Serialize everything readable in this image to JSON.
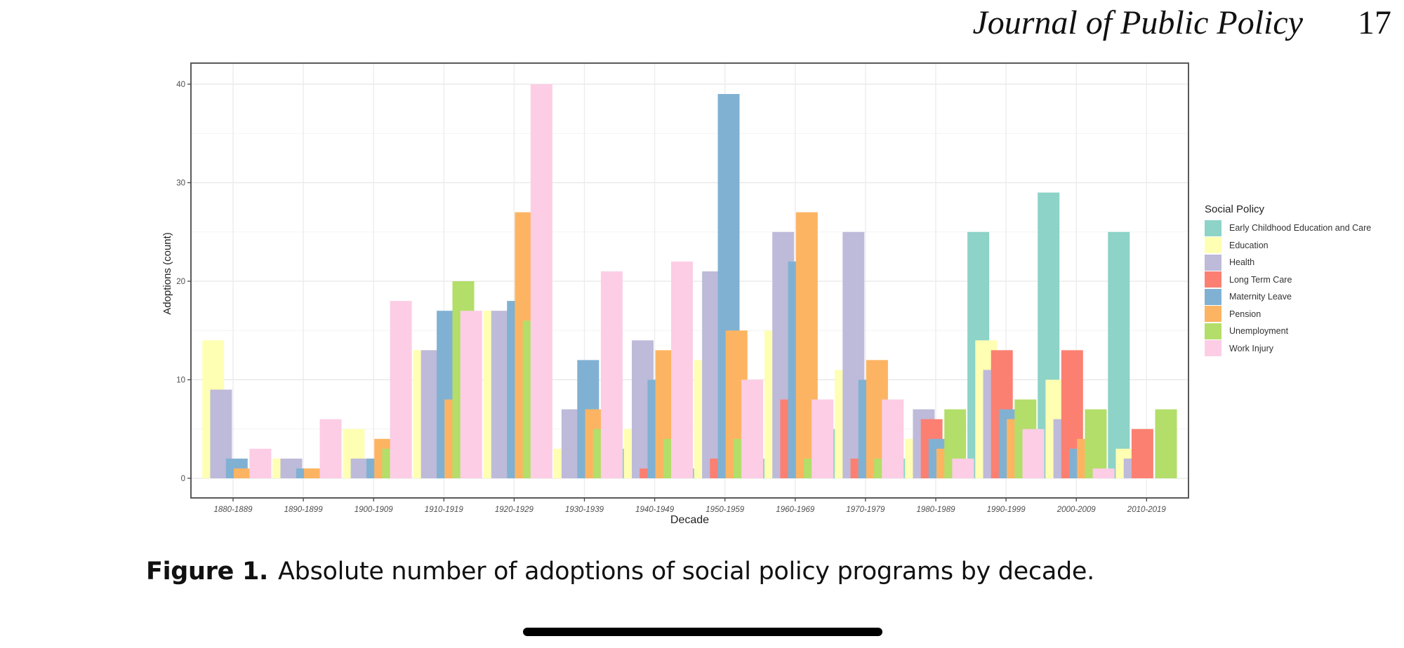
{
  "header": {
    "journal": "Journal of Public Policy",
    "page_number": "17"
  },
  "caption": {
    "label": "Figure 1.",
    "text": "Absolute number of adoptions of social policy programs by decade."
  },
  "chart_data": {
    "type": "bar",
    "title": "",
    "xlabel": "Decade",
    "ylabel": "Adoptions (count)",
    "ylim": [
      -2,
      42
    ],
    "yticks": [
      0,
      10,
      20,
      30,
      40
    ],
    "grid": true,
    "legend_title": "Social Policy",
    "legend_position": "right",
    "categories": [
      "1880-1889",
      "1890-1899",
      "1900-1909",
      "1910-1919",
      "1920-1929",
      "1930-1939",
      "1940-1949",
      "1950-1959",
      "1960-1969",
      "1970-1979",
      "1980-1989",
      "1990-1999",
      "2000-2009",
      "2010-2019"
    ],
    "series": [
      {
        "name": "Early Childhood Education and Care",
        "color": "#8DD3C7",
        "values": [
          0,
          0,
          0,
          0,
          0,
          0,
          3,
          1,
          2,
          5,
          2,
          25,
          29,
          25
        ]
      },
      {
        "name": "Education",
        "color": "#FFFFB3",
        "values": [
          14,
          2,
          5,
          13,
          17,
          3,
          5,
          12,
          15,
          11,
          4,
          14,
          10,
          3
        ]
      },
      {
        "name": "Health",
        "color": "#BEBADA",
        "values": [
          9,
          2,
          2,
          13,
          17,
          7,
          14,
          21,
          25,
          25,
          7,
          11,
          6,
          2
        ]
      },
      {
        "name": "Long Term Care",
        "color": "#FB8072",
        "values": [
          0,
          0,
          0,
          0,
          0,
          0,
          1,
          2,
          8,
          2,
          6,
          13,
          13,
          5
        ]
      },
      {
        "name": "Maternity Leave",
        "color": "#80B1D3",
        "values": [
          2,
          1,
          2,
          17,
          18,
          12,
          10,
          39,
          22,
          10,
          4,
          7,
          3,
          0
        ]
      },
      {
        "name": "Pension",
        "color": "#FDB462",
        "values": [
          1,
          1,
          4,
          8,
          27,
          7,
          13,
          15,
          27,
          12,
          3,
          6,
          4,
          0
        ]
      },
      {
        "name": "Unemployment",
        "color": "#B3DE69",
        "values": [
          0,
          0,
          3,
          20,
          16,
          5,
          4,
          4,
          2,
          2,
          7,
          8,
          7,
          7
        ]
      },
      {
        "name": "Work Injury",
        "color": "#FCCDE5",
        "values": [
          3,
          6,
          18,
          17,
          40,
          21,
          22,
          10,
          8,
          8,
          2,
          5,
          1,
          0
        ]
      }
    ]
  }
}
